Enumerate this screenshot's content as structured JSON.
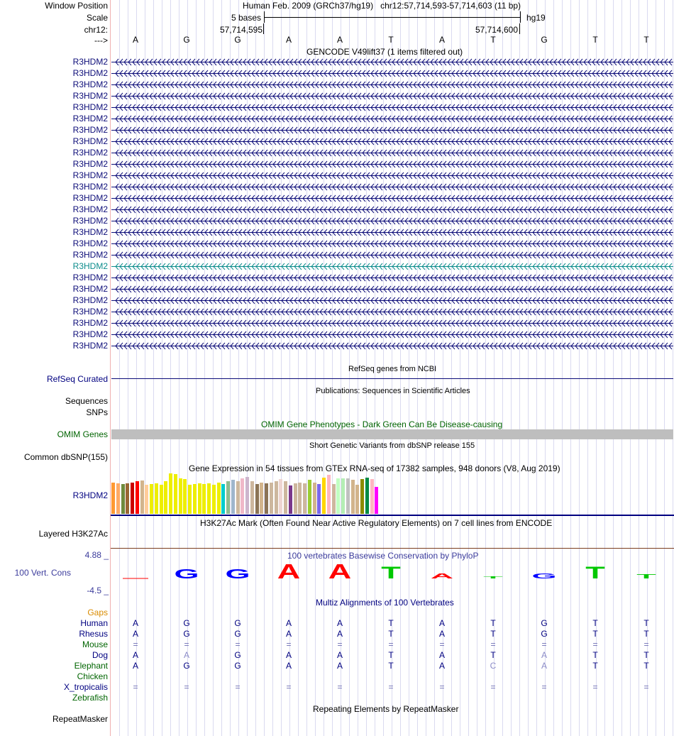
{
  "header": {
    "window_position_label": "Window Position",
    "assembly": "Human Feb. 2009 (GRCh37/hg19)",
    "position": "chr12:57,714,593-57,714,603 (11 bp)",
    "scale_label": "Scale",
    "scale_text": "5 bases",
    "scale_db": "hg19",
    "chrom_label": "chr12:",
    "coord_left": "57,714,595",
    "coord_right": "57,714,600",
    "strand_label": "--->"
  },
  "bases": [
    "A",
    "G",
    "G",
    "A",
    "A",
    "T",
    "A",
    "T",
    "G",
    "T",
    "T"
  ],
  "gencode": {
    "title": "GENCODE V49lift37 (1 items filtered out)",
    "items": [
      "R3HDM2",
      "R3HDM2",
      "R3HDM2",
      "R3HDM2",
      "R3HDM2",
      "R3HDM2",
      "R3HDM2",
      "R3HDM2",
      "R3HDM2",
      "R3HDM2",
      "R3HDM2",
      "R3HDM2",
      "R3HDM2",
      "R3HDM2",
      "R3HDM2",
      "R3HDM2",
      "R3HDM2",
      "R3HDM2",
      "R3HDM2",
      "R3HDM2",
      "R3HDM2",
      "R3HDM2",
      "R3HDM2",
      "R3HDM2",
      "R3HDM2",
      "R3HDM2"
    ],
    "highlight_index": 18,
    "color": "#0c0c78",
    "highlight_color": "#0c8c8c"
  },
  "refseq": {
    "title": "RefSeq genes from NCBI",
    "label": "RefSeq Curated"
  },
  "publications": {
    "title": "Publications: Sequences in Scientific Articles",
    "label_1": "Sequences",
    "label_2": "SNPs"
  },
  "omim": {
    "title": "OMIM Gene Phenotypes - Dark Green Can Be Disease-causing",
    "label": "OMIM Genes"
  },
  "dbsnp": {
    "title": "Short Genetic Variants from dbSNP release 155",
    "label": "Common dbSNP(155)"
  },
  "gtex": {
    "title": "Gene Expression in 54 tissues from GTEx RNA-seq of 17382 samples, 948 donors (V8, Aug 2019)",
    "label": "R3HDM2",
    "bars": [
      {
        "v": 0.78,
        "c": "#ff9933"
      },
      {
        "v": 0.76,
        "c": "#ffaa66"
      },
      {
        "v": 0.74,
        "c": "#6e8b3d"
      },
      {
        "v": 0.76,
        "c": "#996633"
      },
      {
        "v": 0.78,
        "c": "#cc0000"
      },
      {
        "v": 0.8,
        "c": "#ff0000"
      },
      {
        "v": 0.82,
        "c": "#d2b48c"
      },
      {
        "v": 0.72,
        "c": "#ffcc99"
      },
      {
        "v": 0.74,
        "c": "#eeee00"
      },
      {
        "v": 0.76,
        "c": "#eeee00"
      },
      {
        "v": 0.72,
        "c": "#eeee00"
      },
      {
        "v": 0.8,
        "c": "#eeee00"
      },
      {
        "v": 1.0,
        "c": "#eeee00"
      },
      {
        "v": 0.98,
        "c": "#eeee00"
      },
      {
        "v": 0.88,
        "c": "#eeee00"
      },
      {
        "v": 0.86,
        "c": "#eeee00"
      },
      {
        "v": 0.72,
        "c": "#eeee00"
      },
      {
        "v": 0.74,
        "c": "#eeee00"
      },
      {
        "v": 0.76,
        "c": "#eeee00"
      },
      {
        "v": 0.74,
        "c": "#eeee00"
      },
      {
        "v": 0.76,
        "c": "#eeee00"
      },
      {
        "v": 0.72,
        "c": "#eeee00"
      },
      {
        "v": 0.78,
        "c": "#eeee00"
      },
      {
        "v": 0.74,
        "c": "#00cdcd"
      },
      {
        "v": 0.8,
        "c": "#8fbc8f"
      },
      {
        "v": 0.84,
        "c": "#9fb6cd"
      },
      {
        "v": 0.8,
        "c": "#cdb79e"
      },
      {
        "v": 0.88,
        "c": "#f0b8c8"
      },
      {
        "v": 0.92,
        "c": "#cdb5cd"
      },
      {
        "v": 0.8,
        "c": "#cdb79e"
      },
      {
        "v": 0.74,
        "c": "#8b7355"
      },
      {
        "v": 0.78,
        "c": "#d2b48c"
      },
      {
        "v": 0.76,
        "c": "#8b7355"
      },
      {
        "v": 0.78,
        "c": "#cdb79e"
      },
      {
        "v": 0.8,
        "c": "#cdb79e"
      },
      {
        "v": 0.86,
        "c": "#eed5d2"
      },
      {
        "v": 0.8,
        "c": "#cdb79e"
      },
      {
        "v": 0.7,
        "c": "#7a378b"
      },
      {
        "v": 0.76,
        "c": "#cdb79e"
      },
      {
        "v": 0.78,
        "c": "#cdb79e"
      },
      {
        "v": 0.76,
        "c": "#cdb79e"
      },
      {
        "v": 0.84,
        "c": "#9acd32"
      },
      {
        "v": 0.78,
        "c": "#d2b48c"
      },
      {
        "v": 0.74,
        "c": "#7b68ee"
      },
      {
        "v": 0.9,
        "c": "#ffd700"
      },
      {
        "v": 0.96,
        "c": "#ffb6c1"
      },
      {
        "v": 0.74,
        "c": "#cdb79e"
      },
      {
        "v": 0.88,
        "c": "#c1ffc1"
      },
      {
        "v": 0.88,
        "c": "#b4eeb4"
      },
      {
        "v": 0.88,
        "c": "#c0c0c0"
      },
      {
        "v": 0.84,
        "c": "#d2b48c"
      },
      {
        "v": 0.72,
        "c": "#d2b48c"
      },
      {
        "v": 0.86,
        "c": "#8b8b00"
      },
      {
        "v": 0.9,
        "c": "#008b45"
      },
      {
        "v": 0.86,
        "c": "#ffb6c1"
      },
      {
        "v": 0.66,
        "c": "#ff00ff"
      }
    ]
  },
  "h3k27ac": {
    "title": "H3K27Ac Mark (Often Found Near Active Regulatory Elements) on 7 cell lines from ENCODE",
    "label": "Layered H3K27Ac"
  },
  "conservation": {
    "title": "100 vertebrates Basewise Conservation by PhyloP",
    "label": "100 Vert. Cons",
    "ymax": "4.88 _",
    "ymin": "-4.5 _",
    "scores": [
      -0.3,
      1.6,
      1.6,
      2.5,
      2.5,
      2.1,
      0.9,
      0.4,
      0.9,
      2.1,
      0.7
    ]
  },
  "multiz": {
    "title": "Multiz Alignments of 100 Vertebrates",
    "gaps_label": "Gaps",
    "species": [
      {
        "name": "Human",
        "color": "#000080",
        "seq": [
          "A",
          "G",
          "G",
          "A",
          "A",
          "T",
          "A",
          "T",
          "G",
          "T",
          "T"
        ]
      },
      {
        "name": "Rhesus",
        "color": "#000080",
        "seq": [
          "A",
          "G",
          "G",
          "A",
          "A",
          "T",
          "A",
          "T",
          "G",
          "T",
          "T"
        ]
      },
      {
        "name": "Mouse",
        "color": "#006400",
        "seq": [
          "=",
          "=",
          "=",
          "=",
          "=",
          "=",
          "=",
          "=",
          "=",
          "=",
          "="
        ]
      },
      {
        "name": "Dog",
        "color": "#000080",
        "seq": [
          "A",
          "A",
          "G",
          "A",
          "A",
          "T",
          "A",
          "T",
          "A",
          "T",
          "T"
        ]
      },
      {
        "name": "Elephant",
        "color": "#006400",
        "seq": [
          "A",
          "G",
          "G",
          "A",
          "A",
          "T",
          "A",
          "C",
          "A",
          "T",
          "T"
        ]
      },
      {
        "name": "Chicken",
        "color": "#006400",
        "seq": [
          "",
          "",
          "",
          "",
          "",
          "",
          "",
          "",
          "",
          "",
          ""
        ]
      },
      {
        "name": "X_tropicalis",
        "color": "#000080",
        "seq": [
          "=",
          "=",
          "=",
          "=",
          "=",
          "=",
          "=",
          "=",
          "=",
          "=",
          "="
        ]
      },
      {
        "name": "Zebrafish",
        "color": "#006400",
        "seq": [
          "",
          "",
          "",
          "",
          "",
          "",
          "",
          "",
          "",
          "",
          ""
        ]
      }
    ]
  },
  "repeatmasker": {
    "title": "Repeating Elements by RepeatMasker",
    "label": "RepeatMasker"
  }
}
